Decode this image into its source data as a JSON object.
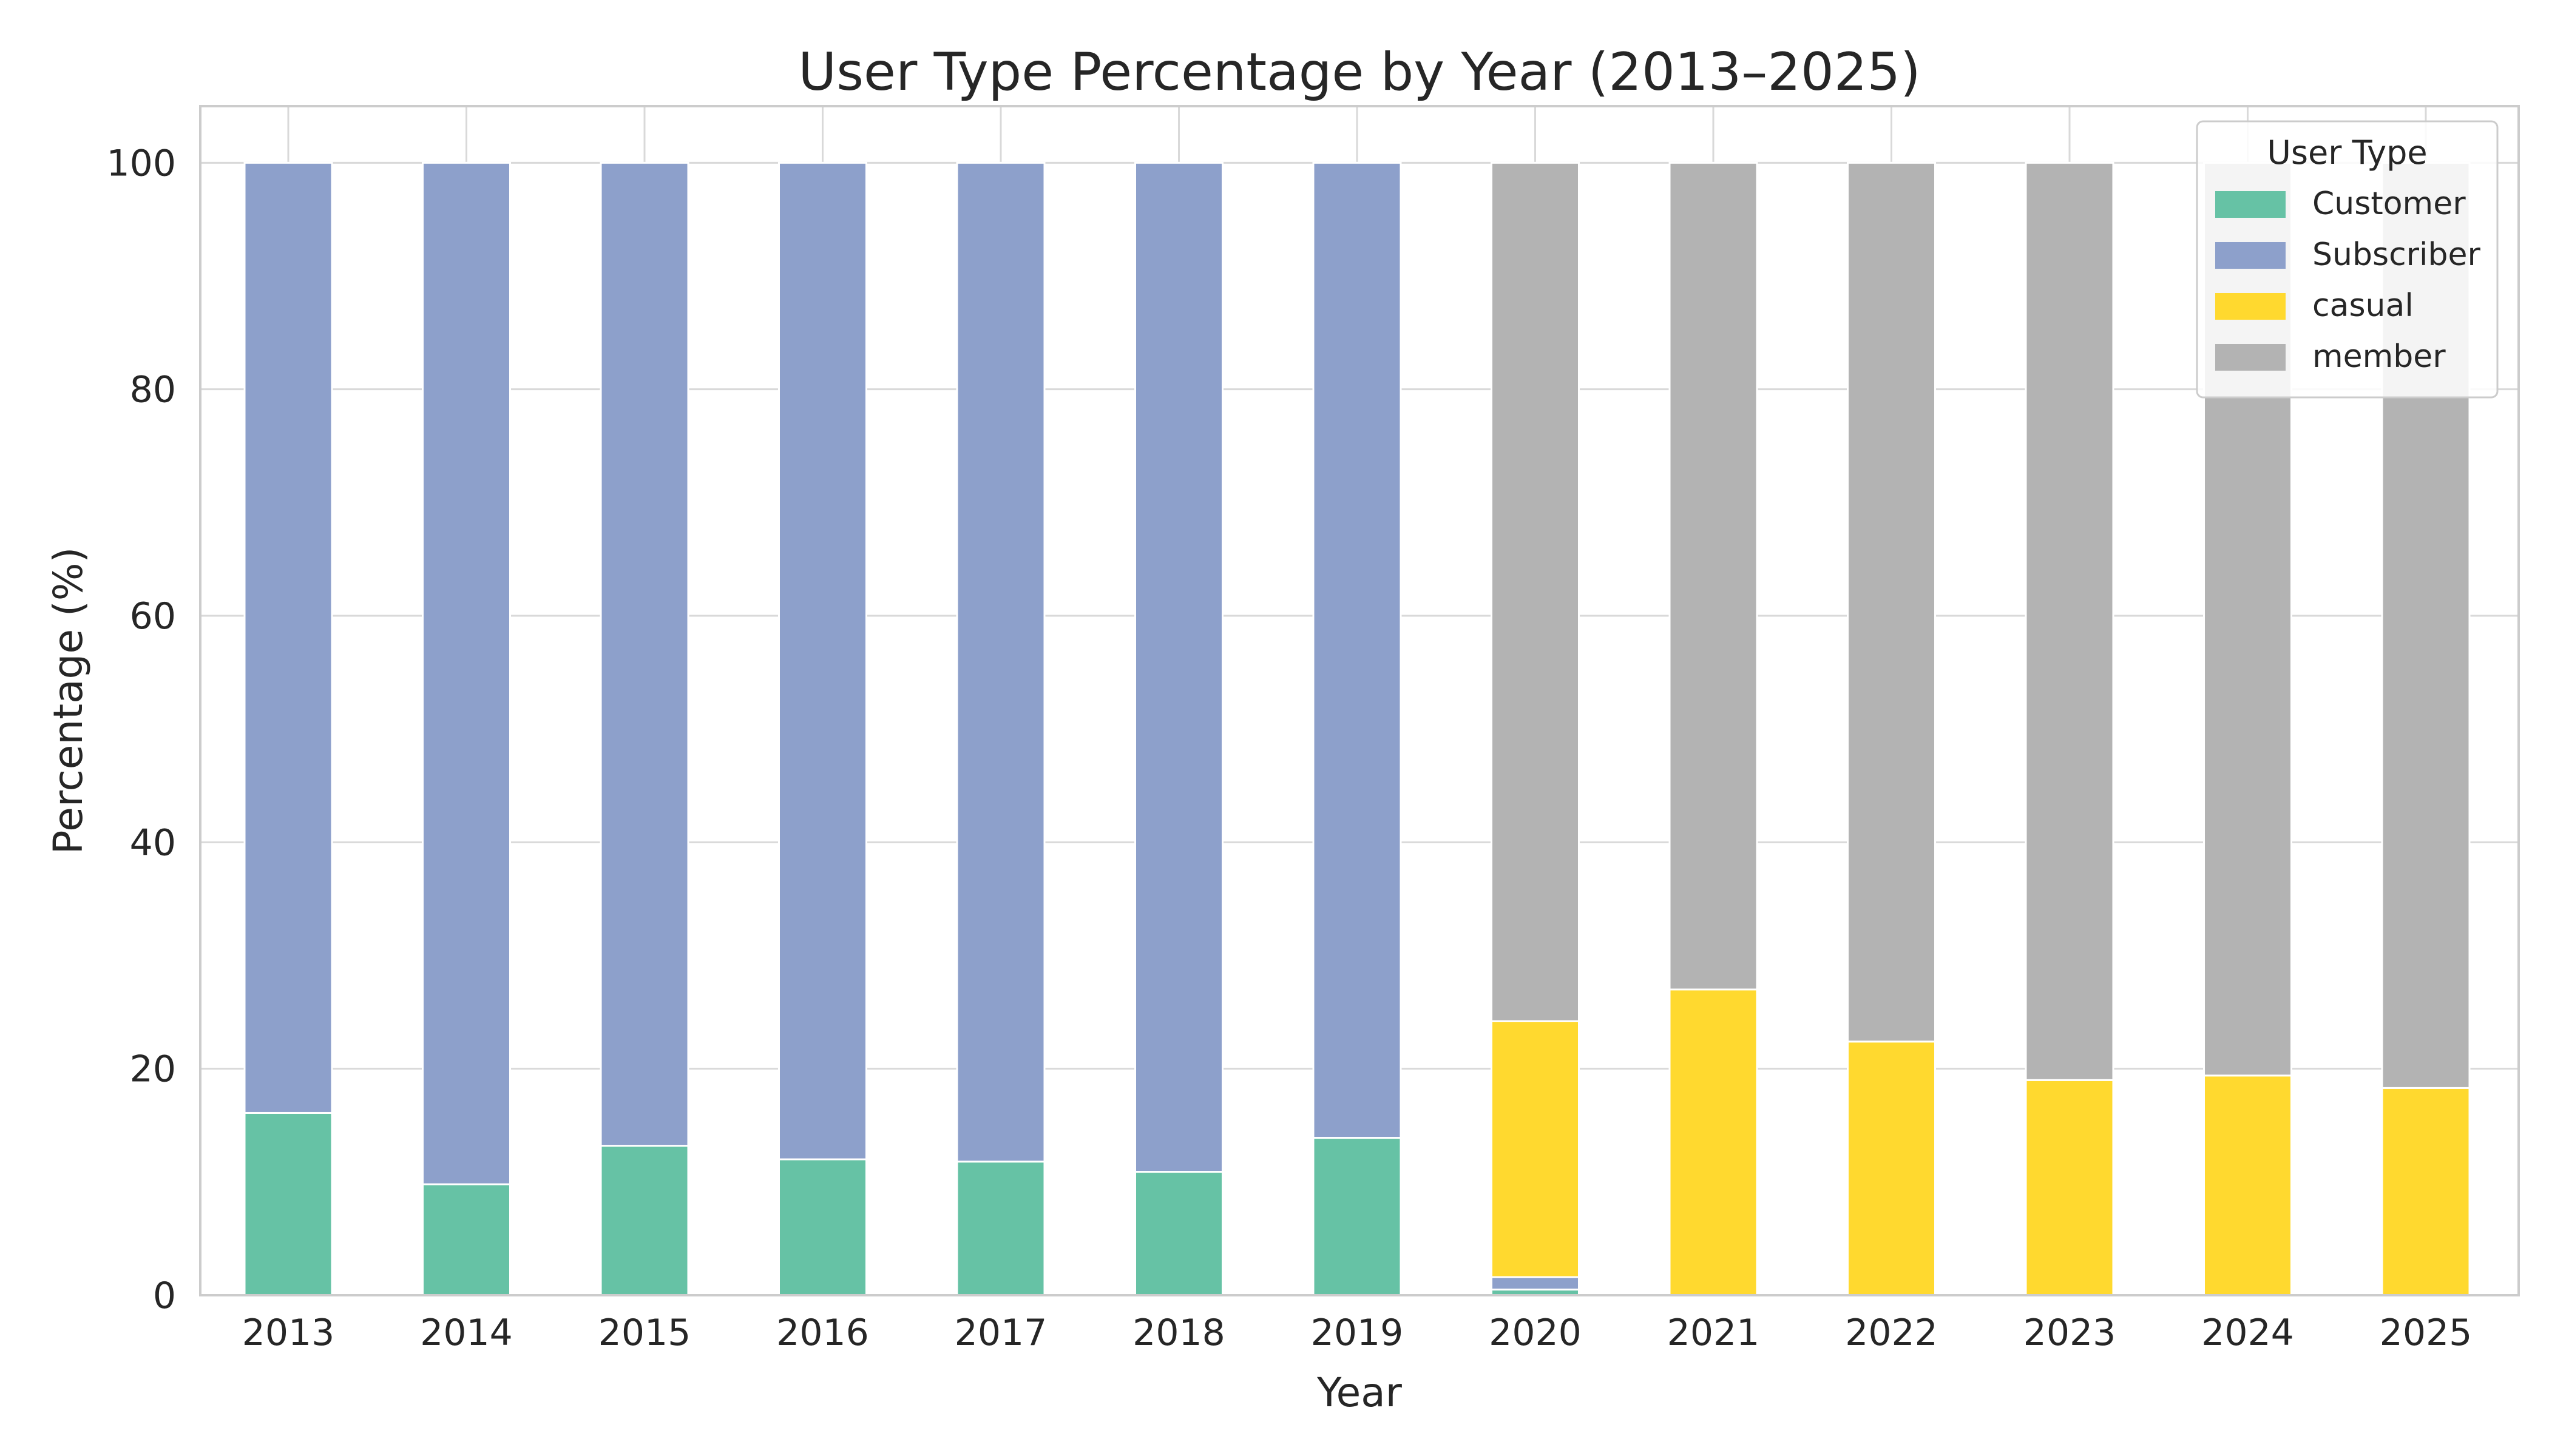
{
  "chart_data": {
    "type": "bar",
    "stacked": true,
    "title": "User Type Percentage by Year (2013–2025)",
    "xlabel": "Year",
    "ylabel": "Percentage (%)",
    "ylim": [
      0,
      105
    ],
    "yticks": [
      0,
      20,
      40,
      60,
      80,
      100
    ],
    "grid": true,
    "legend": {
      "title": "User Type",
      "position": "top-right"
    },
    "categories": [
      "2013",
      "2014",
      "2015",
      "2016",
      "2017",
      "2018",
      "2019",
      "2020",
      "2021",
      "2022",
      "2023",
      "2024",
      "2025"
    ],
    "series": [
      {
        "name": "Customer",
        "color": "#66c2a5",
        "values": [
          16.1,
          9.8,
          13.2,
          12.0,
          11.8,
          10.9,
          13.9,
          0.5,
          0,
          0,
          0,
          0,
          0
        ]
      },
      {
        "name": "Subscriber",
        "color": "#8da0cb",
        "values": [
          83.9,
          90.2,
          86.8,
          88.0,
          88.2,
          89.1,
          86.1,
          1.1,
          0,
          0,
          0,
          0,
          0
        ]
      },
      {
        "name": "casual",
        "color": "#ffd92f",
        "values": [
          0,
          0,
          0,
          0,
          0,
          0,
          0,
          22.6,
          27.0,
          22.4,
          19.0,
          19.4,
          18.3
        ]
      },
      {
        "name": "member",
        "color": "#b3b3b3",
        "values": [
          0,
          0,
          0,
          0,
          0,
          0,
          0,
          75.8,
          73.0,
          77.6,
          81.0,
          80.6,
          81.7
        ]
      }
    ]
  }
}
